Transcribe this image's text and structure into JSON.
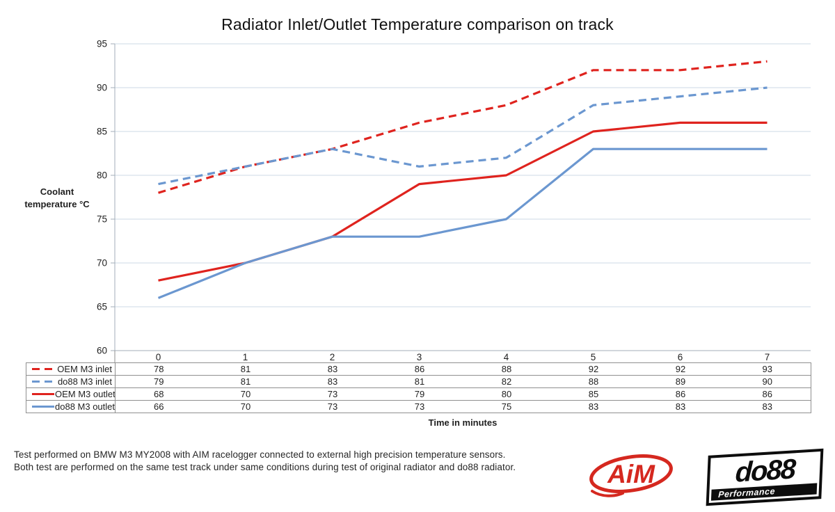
{
  "title": "Radiator Inlet/Outlet Temperature comparison on track",
  "y_axis_label": "Coolant\ntemperature °C",
  "x_axis_label": "Time in minutes",
  "footnote": {
    "line1": "Test performed on BMW M3 MY2008 with AIM racelogger connected to external high precision temperature sensors.",
    "line2": "Both test are performed on the same test track under same conditions during test of original radiator and do88 radiator."
  },
  "logos": {
    "aim_text": "AiM",
    "aim_color": "#d5281f",
    "do88_text": "do88",
    "do88_subtext": "Performance",
    "do88_color": "#0d0d0d"
  },
  "chart_data": {
    "type": "line",
    "title": "Radiator Inlet/Outlet Temperature comparison on track",
    "xlabel": "Time in minutes",
    "ylabel": "Coolant temperature °C",
    "x": [
      0,
      1,
      2,
      3,
      4,
      5,
      6,
      7
    ],
    "series": [
      {
        "name": "OEM M3 inlet",
        "color": "#df231e",
        "dashed": true,
        "values": [
          78,
          81,
          83,
          86,
          88,
          92,
          92,
          93
        ]
      },
      {
        "name": "do88 M3 inlet",
        "color": "#6b97d0",
        "dashed": true,
        "values": [
          79,
          81,
          83,
          81,
          82,
          88,
          89,
          90
        ]
      },
      {
        "name": "OEM M3 outlet",
        "color": "#df231e",
        "dashed": false,
        "values": [
          68,
          70,
          73,
          79,
          80,
          85,
          86,
          86
        ]
      },
      {
        "name": "do88 M3 outlet",
        "color": "#6b97d0",
        "dashed": false,
        "values": [
          66,
          70,
          73,
          73,
          75,
          83,
          83,
          83
        ]
      }
    ],
    "ylim": [
      60,
      95
    ],
    "ytick_step": 5,
    "grid": true,
    "grid_color": "#cdd9e4",
    "axis_color": "#a3aeb9",
    "table_border_color": "#8f8f8f",
    "legend_position": "table-left"
  }
}
